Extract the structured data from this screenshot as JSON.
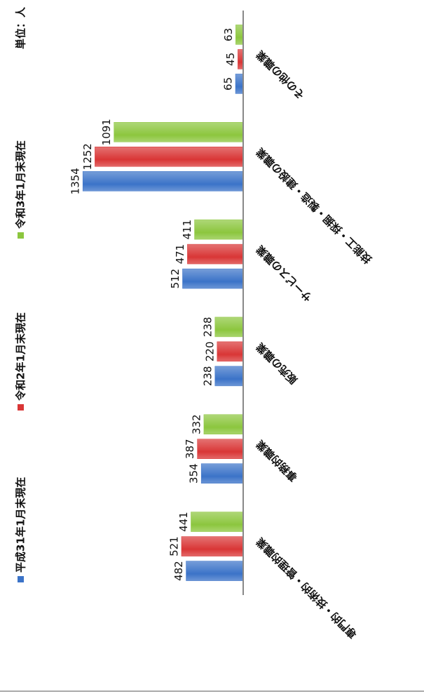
{
  "chart_data": {
    "type": "bar",
    "unit_label": "単位：人",
    "categories": [
      "専門的・技術的・管理的職業",
      "事務的職業",
      "販売の職業",
      "サービスの職業",
      "技能工・採掘・製造・建設の職業",
      "その他の職業"
    ],
    "series": [
      {
        "name": "平成31年1月末現在",
        "color": "#3b73c8",
        "values": [
          482,
          354,
          238,
          512,
          1354,
          65
        ]
      },
      {
        "name": "令和2年1月末現在",
        "color": "#d93636",
        "values": [
          521,
          387,
          220,
          471,
          1252,
          45
        ]
      },
      {
        "name": "令和3年1月末現在",
        "color": "#8cc63e",
        "values": [
          441,
          332,
          238,
          411,
          1091,
          63
        ]
      }
    ]
  }
}
